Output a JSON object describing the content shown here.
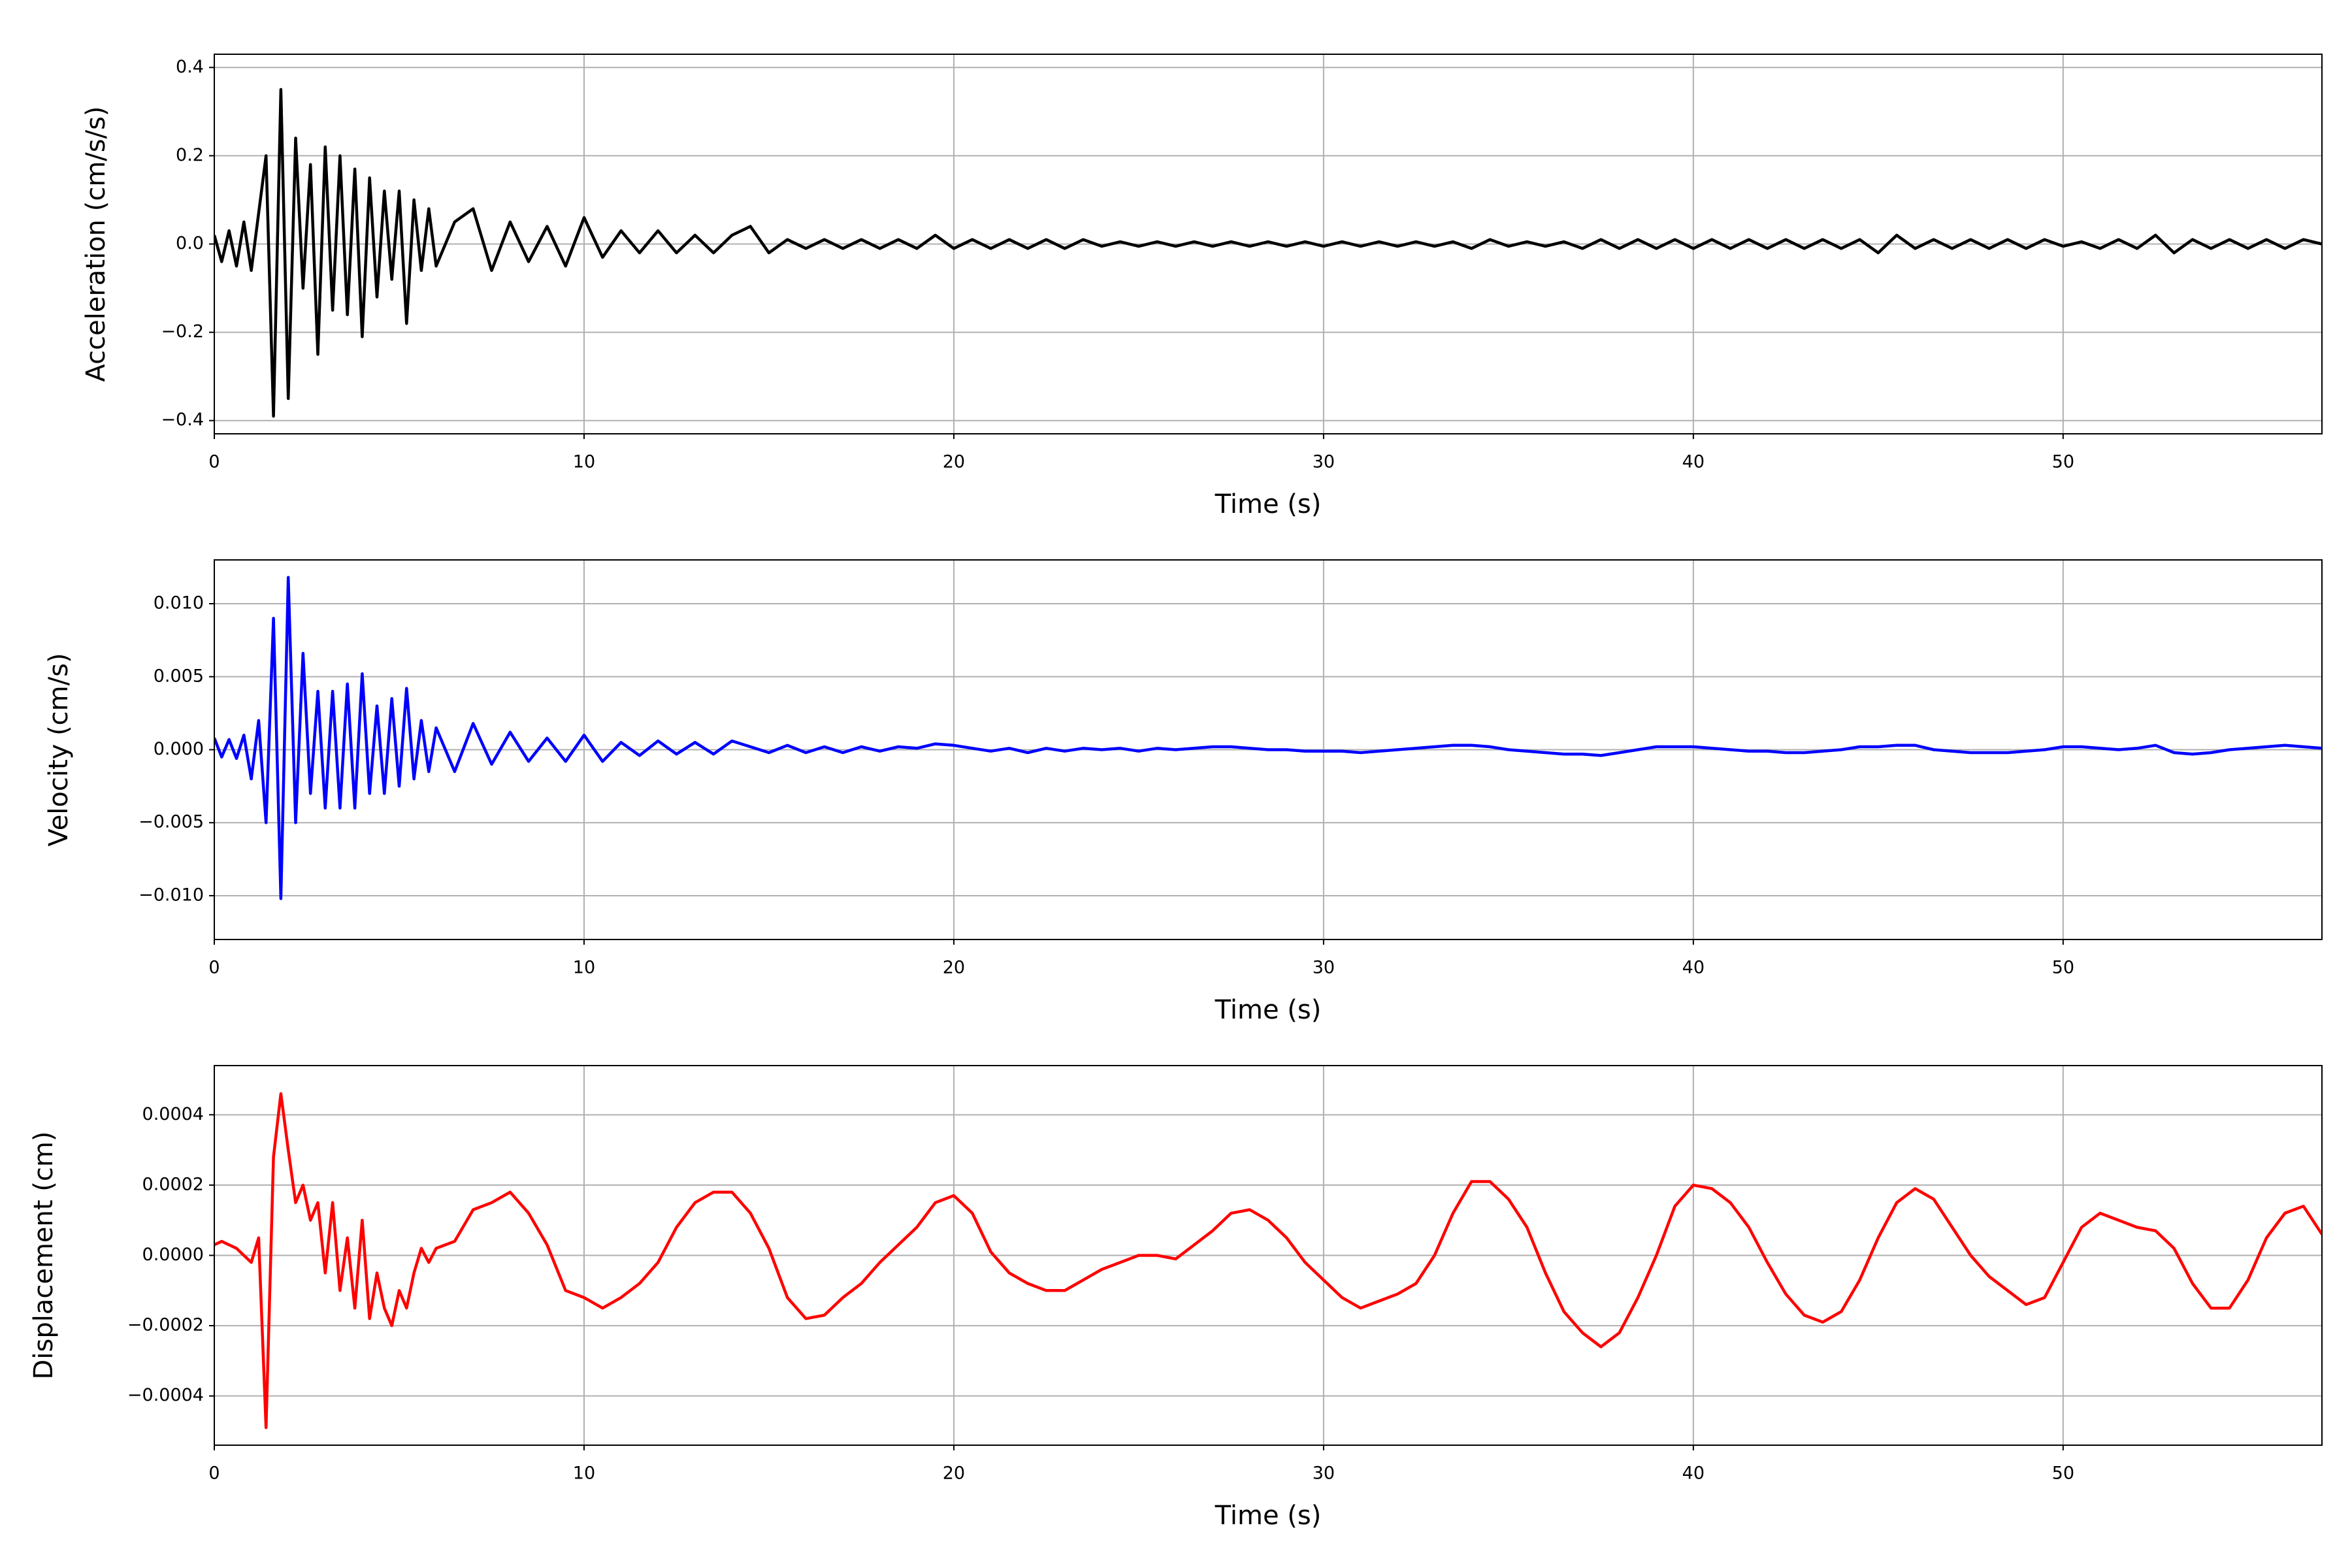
{
  "chart_data": [
    {
      "type": "line",
      "color": "#000000",
      "ylabel": "Acceleration (cm/s/s)",
      "xlabel": "Time (s)",
      "grid": true,
      "xlim": [
        0,
        57
      ],
      "ylim": [
        -0.43,
        0.43
      ],
      "xticks": [
        0,
        10,
        20,
        30,
        40,
        50
      ],
      "yticks": [
        {
          "value": -0.4,
          "label": "−0.4"
        },
        {
          "value": -0.2,
          "label": "−0.2"
        },
        {
          "value": 0,
          "label": "0.0"
        },
        0.2,
        0.4
      ],
      "x": [
        0,
        0.2,
        0.4,
        0.6,
        0.8,
        1,
        1.2,
        1.4,
        1.6,
        1.8,
        2,
        2.2,
        2.4,
        2.6,
        2.8,
        3,
        3.2,
        3.4,
        3.6,
        3.8,
        4,
        4.2,
        4.4,
        4.6,
        4.8,
        5,
        5.2,
        5.4,
        5.6,
        5.8,
        6,
        6.5,
        7,
        7.5,
        8,
        8.5,
        9,
        9.5,
        10,
        10.5,
        11,
        11.5,
        12,
        12.5,
        13,
        13.5,
        14,
        14.5,
        15,
        15.5,
        16,
        16.5,
        17,
        17.5,
        18,
        18.5,
        19,
        19.5,
        20,
        20.5,
        21,
        21.5,
        22,
        22.5,
        23,
        23.5,
        24,
        24.5,
        25,
        25.5,
        26,
        26.5,
        27,
        27.5,
        28,
        28.5,
        29,
        29.5,
        30,
        30.5,
        31,
        31.5,
        32,
        32.5,
        33,
        33.5,
        34,
        34.5,
        35,
        35.5,
        36,
        36.5,
        37,
        37.5,
        38,
        38.5,
        39,
        39.5,
        40,
        40.5,
        41,
        41.5,
        42,
        42.5,
        43,
        43.5,
        44,
        44.5,
        45,
        45.5,
        46,
        46.5,
        47,
        47.5,
        48,
        48.5,
        49,
        49.5,
        50,
        50.5,
        51,
        51.5,
        52,
        52.5,
        53,
        53.5,
        54,
        54.5,
        55,
        55.5,
        56,
        56.5,
        57
      ],
      "values": [
        0.02,
        -0.04,
        0.03,
        -0.05,
        0.05,
        -0.06,
        0.07,
        0.2,
        -0.39,
        0.35,
        -0.35,
        0.24,
        -0.1,
        0.18,
        -0.25,
        0.22,
        -0.15,
        0.2,
        -0.16,
        0.17,
        -0.21,
        0.15,
        -0.12,
        0.12,
        -0.08,
        0.12,
        -0.18,
        0.1,
        -0.06,
        0.08,
        -0.05,
        0.05,
        0.08,
        -0.06,
        0.05,
        -0.04,
        0.04,
        -0.05,
        0.06,
        -0.03,
        0.03,
        -0.02,
        0.03,
        -0.02,
        0.02,
        -0.02,
        0.02,
        0.04,
        -0.02,
        0.01,
        -0.01,
        0.01,
        -0.01,
        0.01,
        -0.01,
        0.01,
        -0.01,
        0.02,
        -0.01,
        0.01,
        -0.01,
        0.01,
        -0.01,
        0.01,
        -0.01,
        0.01,
        -0.005,
        0.005,
        -0.005,
        0.005,
        -0.005,
        0.005,
        -0.005,
        0.005,
        -0.005,
        0.005,
        -0.005,
        0.005,
        -0.005,
        0.005,
        -0.005,
        0.005,
        -0.005,
        0.005,
        -0.005,
        0.005,
        -0.01,
        0.01,
        -0.005,
        0.005,
        -0.005,
        0.005,
        -0.01,
        0.01,
        -0.01,
        0.01,
        -0.01,
        0.01,
        -0.01,
        0.01,
        -0.01,
        0.01,
        -0.01,
        0.01,
        -0.01,
        0.01,
        -0.01,
        0.01,
        -0.02,
        0.02,
        -0.01,
        0.01,
        -0.01,
        0.01,
        -0.01,
        0.01,
        -0.01,
        0.01,
        -0.005,
        0.005,
        -0.01,
        0.01,
        -0.01,
        0.02,
        -0.02,
        0.01,
        -0.01,
        0.01,
        -0.01,
        0.01,
        -0.01,
        0.01,
        0.0
      ]
    },
    {
      "type": "line",
      "color": "#0000ff",
      "ylabel": "Velocity (cm/s)",
      "xlabel": "Time (s)",
      "grid": true,
      "xlim": [
        0,
        57
      ],
      "ylim": [
        -0.013,
        0.013
      ],
      "xticks": [
        0,
        10,
        20,
        30,
        40,
        50
      ],
      "yticks": [
        {
          "value": -0.01,
          "label": "−0.010"
        },
        {
          "value": -0.005,
          "label": "−0.005"
        },
        {
          "value": 0,
          "label": "0.000"
        },
        {
          "value": 0.005,
          "label": "0.005"
        },
        {
          "value": 0.01,
          "label": "0.010"
        }
      ],
      "x": [
        0,
        0.2,
        0.4,
        0.6,
        0.8,
        1,
        1.2,
        1.4,
        1.6,
        1.8,
        2,
        2.2,
        2.4,
        2.6,
        2.8,
        3,
        3.2,
        3.4,
        3.6,
        3.8,
        4,
        4.2,
        4.4,
        4.6,
        4.8,
        5,
        5.2,
        5.4,
        5.6,
        5.8,
        6,
        6.5,
        7,
        7.5,
        8,
        8.5,
        9,
        9.5,
        10,
        10.5,
        11,
        11.5,
        12,
        12.5,
        13,
        13.5,
        14,
        14.5,
        15,
        15.5,
        16,
        16.5,
        17,
        17.5,
        18,
        18.5,
        19,
        19.5,
        20,
        20.5,
        21,
        21.5,
        22,
        22.5,
        23,
        23.5,
        24,
        24.5,
        25,
        25.5,
        26,
        26.5,
        27,
        27.5,
        28,
        28.5,
        29,
        29.5,
        30,
        30.5,
        31,
        31.5,
        32,
        32.5,
        33,
        33.5,
        34,
        34.5,
        35,
        35.5,
        36,
        36.5,
        37,
        37.5,
        38,
        38.5,
        39,
        39.5,
        40,
        40.5,
        41,
        41.5,
        42,
        42.5,
        43,
        43.5,
        44,
        44.5,
        45,
        45.5,
        46,
        46.5,
        47,
        47.5,
        48,
        48.5,
        49,
        49.5,
        50,
        50.5,
        51,
        51.5,
        52,
        52.5,
        53,
        53.5,
        54,
        54.5,
        55,
        55.5,
        56,
        56.5,
        57
      ],
      "values": [
        0.0008,
        -0.0005,
        0.0007,
        -0.0006,
        0.001,
        -0.002,
        0.002,
        -0.005,
        0.009,
        -0.0102,
        0.0118,
        -0.005,
        0.0066,
        -0.003,
        0.004,
        -0.004,
        0.004,
        -0.004,
        0.0045,
        -0.004,
        0.0052,
        -0.003,
        0.003,
        -0.003,
        0.0035,
        -0.0025,
        0.0042,
        -0.002,
        0.002,
        -0.0015,
        0.0015,
        -0.0015,
        0.0018,
        -0.001,
        0.0012,
        -0.0008,
        0.0008,
        -0.0008,
        0.001,
        -0.0008,
        0.0005,
        -0.0004,
        0.0006,
        -0.0003,
        0.0005,
        -0.0003,
        0.0006,
        0.0002,
        -0.0002,
        0.0003,
        -0.0002,
        0.0002,
        -0.0002,
        0.0002,
        -0.0001,
        0.0002,
        0.0001,
        0.0004,
        0.0003,
        0.0001,
        -0.0001,
        0.0001,
        -0.0002,
        0.0001,
        -0.0001,
        0.0001,
        0.0,
        0.0001,
        -0.0001,
        0.0001,
        0.0,
        0.0001,
        0.0002,
        0.0002,
        0.0001,
        0.0,
        0.0,
        -0.0001,
        -0.0001,
        -0.0001,
        -0.0002,
        -0.0001,
        0.0,
        0.0001,
        0.0002,
        0.0003,
        0.0003,
        0.0002,
        0.0,
        -0.0001,
        -0.0002,
        -0.0003,
        -0.0003,
        -0.0004,
        -0.0002,
        0.0,
        0.0002,
        0.0002,
        0.0002,
        0.0001,
        0.0,
        -0.0001,
        -0.0001,
        -0.0002,
        -0.0002,
        -0.0001,
        0.0,
        0.0002,
        0.0002,
        0.0003,
        0.0003,
        0.0,
        -0.0001,
        -0.0002,
        -0.0002,
        -0.0002,
        -0.0001,
        0.0,
        0.0002,
        0.0002,
        0.0001,
        0.0,
        0.0001,
        0.0003,
        -0.0002,
        -0.0003,
        -0.0002,
        0.0,
        0.0001,
        0.0002,
        0.0003,
        0.0002,
        0.0001
      ]
    },
    {
      "type": "line",
      "color": "#ff0000",
      "ylabel": "Displacement (cm)",
      "xlabel": "Time (s)",
      "grid": true,
      "xlim": [
        0,
        57
      ],
      "ylim": [
        -0.00054,
        0.00054
      ],
      "xticks": [
        0,
        10,
        20,
        30,
        40,
        50
      ],
      "yticks": [
        {
          "value": -0.0004,
          "label": "−0.0004"
        },
        {
          "value": -0.0002,
          "label": "−0.0002"
        },
        {
          "value": 0,
          "label": "0.0000"
        },
        0.0002,
        0.0004
      ],
      "x": [
        0,
        0.2,
        0.4,
        0.6,
        0.8,
        1,
        1.2,
        1.4,
        1.6,
        1.8,
        2,
        2.2,
        2.4,
        2.6,
        2.8,
        3,
        3.2,
        3.4,
        3.6,
        3.8,
        4,
        4.2,
        4.4,
        4.6,
        4.8,
        5,
        5.2,
        5.4,
        5.6,
        5.8,
        6,
        6.5,
        7,
        7.5,
        8,
        8.5,
        9,
        9.5,
        10,
        10.5,
        11,
        11.5,
        12,
        12.5,
        13,
        13.5,
        14,
        14.5,
        15,
        15.5,
        16,
        16.5,
        17,
        17.5,
        18,
        18.5,
        19,
        19.5,
        20,
        20.5,
        21,
        21.5,
        22,
        22.5,
        23,
        23.5,
        24,
        24.5,
        25,
        25.5,
        26,
        26.5,
        27,
        27.5,
        28,
        28.5,
        29,
        29.5,
        30,
        30.5,
        31,
        31.5,
        32,
        32.5,
        33,
        33.5,
        34,
        34.5,
        35,
        35.5,
        36,
        36.5,
        37,
        37.5,
        38,
        38.5,
        39,
        39.5,
        40,
        40.5,
        41,
        41.5,
        42,
        42.5,
        43,
        43.5,
        44,
        44.5,
        45,
        45.5,
        46,
        46.5,
        47,
        47.5,
        48,
        48.5,
        49,
        49.5,
        50,
        50.5,
        51,
        51.5,
        52,
        52.5,
        53,
        53.5,
        54,
        54.5,
        55,
        55.5,
        56,
        56.5,
        57
      ],
      "values": [
        3e-05,
        4e-05,
        3e-05,
        2e-05,
        0.0,
        -2e-05,
        5e-05,
        -0.00049,
        0.00028,
        0.00046,
        0.0003,
        0.00015,
        0.0002,
        0.0001,
        0.00015,
        -5e-05,
        0.00015,
        -0.0001,
        5e-05,
        -0.00015,
        0.0001,
        -0.00018,
        -5e-05,
        -0.00015,
        -0.0002,
        -0.0001,
        -0.00015,
        -5e-05,
        2e-05,
        -2e-05,
        2e-05,
        4e-05,
        0.00013,
        0.00015,
        0.00018,
        0.00012,
        3e-05,
        -0.0001,
        -0.00012,
        -0.00015,
        -0.00012,
        -8e-05,
        -2e-05,
        8e-05,
        0.00015,
        0.00018,
        0.00018,
        0.00012,
        2e-05,
        -0.00012,
        -0.00018,
        -0.00017,
        -0.00012,
        -8e-05,
        -2e-05,
        3e-05,
        8e-05,
        0.00015,
        0.00017,
        0.00012,
        1e-05,
        -5e-05,
        -8e-05,
        -0.0001,
        -0.0001,
        -7e-05,
        -4e-05,
        -2e-05,
        0.0,
        0.0,
        -1e-05,
        3e-05,
        7e-05,
        0.00012,
        0.00013,
        0.0001,
        5e-05,
        -2e-05,
        -7e-05,
        -0.00012,
        -0.00015,
        -0.00013,
        -0.00011,
        -8e-05,
        0.0,
        0.00012,
        0.00021,
        0.00021,
        0.00016,
        8e-05,
        -5e-05,
        -0.00016,
        -0.00022,
        -0.00026,
        -0.00022,
        -0.00012,
        0.0,
        0.00014,
        0.0002,
        0.00019,
        0.00015,
        8e-05,
        -2e-05,
        -0.00011,
        -0.00017,
        -0.00019,
        -0.00016,
        -7e-05,
        5e-05,
        0.00015,
        0.00019,
        0.00016,
        8e-05,
        0.0,
        -6e-05,
        -0.0001,
        -0.00014,
        -0.00012,
        -2e-05,
        8e-05,
        0.00012,
        0.0001,
        8e-05,
        7e-05,
        2e-05,
        -8e-05,
        -0.00015,
        -0.00015,
        -7e-05,
        5e-05,
        0.00012,
        0.00014,
        6e-05
      ]
    }
  ]
}
